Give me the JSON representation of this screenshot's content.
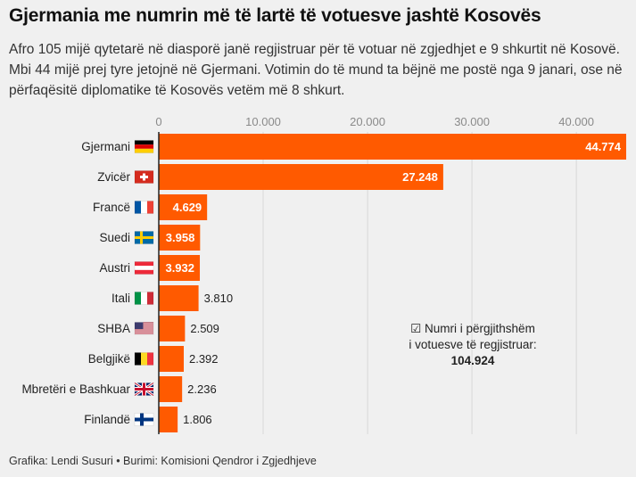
{
  "title": "Gjermania me numrin më të lartë të votuesve jashtë Kosovës",
  "subtitle": "Afro 105 mijë qytetarë në diasporë janë regjistruar për të votuar në zgjedhjet e 9 shkurtit në Kosovë. Mbi 44 mijë prej tyre jetojnë në Gjermani. Votimin do të mund ta bëjnë me postë nga 9 janari, ose në përfaqësitë diplomatike të Kosovës vetëm më 8 shkurt.",
  "footer": "Grafika: Lendi Susuri • Burimi: Komisioni Qendror i Zgjedhjeve",
  "total_box": {
    "label_line1": "☑ Numri i përgjithshëm",
    "label_line2": "i votuesve të regjistruar:",
    "value": "104.924"
  },
  "colors": {
    "bar": "#ff5a00",
    "grid": "#d8d8d8",
    "axis": "#222222"
  },
  "chart_data": {
    "type": "bar",
    "orientation": "horizontal",
    "categories": [
      "Gjermani",
      "Zvicër",
      "Francë",
      "Suedi",
      "Austri",
      "Itali",
      "SHBA",
      "Belgjikë",
      "Mbretëri e Bashkuar",
      "Finlandë"
    ],
    "flags": [
      "de",
      "ch",
      "fr",
      "se",
      "at",
      "it",
      "us",
      "be",
      "gb",
      "fi"
    ],
    "values": [
      44774,
      27248,
      4629,
      3958,
      3932,
      3810,
      2509,
      2392,
      2236,
      1806
    ],
    "value_labels": [
      "44.774",
      "27.248",
      "4.629",
      "3.958",
      "3.932",
      "3.810",
      "2.509",
      "2.392",
      "2.236",
      "1.806"
    ],
    "labels_inside": [
      true,
      true,
      true,
      true,
      true,
      false,
      false,
      false,
      false,
      false
    ],
    "xticks": [
      0,
      10000,
      20000,
      30000,
      40000
    ],
    "xtick_labels": [
      "0",
      "10.000",
      "20.000",
      "30.000",
      "40.000"
    ],
    "xlim": [
      0,
      44774
    ],
    "grid": true
  }
}
